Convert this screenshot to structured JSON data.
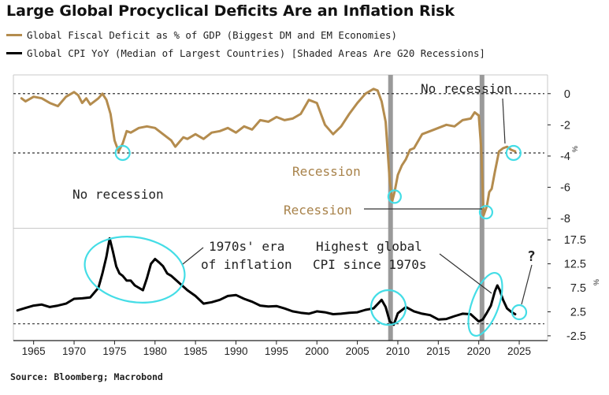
{
  "title": "Large Global Procyclical Deficits Are an Inflation Risk",
  "source": "Source: Bloomberg; Macrobond",
  "colors": {
    "deficit": "#b48c4e",
    "cpi": "#000000",
    "recession": "#9a9a9a",
    "highlight": "#44dde6",
    "annotation_brown": "#a8824a"
  },
  "chart_data": {
    "type": "line",
    "legend": [
      {
        "label": "Global Fiscal Deficit as % of GDP (Biggest DM and EM Economies)",
        "color": "#b48c4e"
      },
      {
        "label": "Global CPI YoY (Median of Largest Countries) [Shaded Areas Are G20 Recessions]",
        "color": "#000000"
      }
    ],
    "x_ticks": [
      "1965",
      "1970",
      "1975",
      "1980",
      "1985",
      "1990",
      "1995",
      "2000",
      "2005",
      "2010",
      "2015",
      "2020",
      "2025"
    ],
    "xlim": [
      1962.5,
      2028.5
    ],
    "recessions": [
      2009.1,
      2020.4
    ],
    "panels": [
      {
        "name": "Global Fiscal Deficit as % of GDP (Biggest DM and EM Economies)",
        "ylim": [
          -8.5,
          1.2
        ],
        "y_ticks": [
          0,
          -2,
          -4,
          -6,
          -8
        ],
        "y_tick_labels": [
          "0",
          "-2",
          "-4",
          "-6",
          "-8"
        ],
        "y_unit": "%",
        "reference_lines": [
          0,
          -3.8
        ],
        "series": [
          {
            "name": "Global Fiscal Deficit as % of GDP (Biggest DM and EM Economies)",
            "color": "#b48c4e",
            "x": [
              1963.5,
              1964,
              1965,
              1966,
              1967,
              1968,
              1969,
              1970,
              1970.5,
              1971,
              1971.5,
              1972,
              1973,
              1973.5,
              1974,
              1974.5,
              1975,
              1975.5,
              1976,
              1976.5,
              1977,
              1978,
              1979,
              1980,
              1981,
              1982,
              1982.5,
              1983,
              1983.5,
              1984,
              1985,
              1986,
              1987,
              1988,
              1989,
              1990,
              1991,
              1992,
              1993,
              1994,
              1995,
              1996,
              1997,
              1998,
              1999,
              2000,
              2001,
              2002,
              2003,
              2004,
              2005,
              2006,
              2007,
              2007.5,
              2008,
              2008.5,
              2009,
              2009.3,
              2009.6,
              2010,
              2010.5,
              2011,
              2011.5,
              2012,
              2013,
              2014,
              2015,
              2016,
              2017,
              2018,
              2019,
              2019.5,
              2020,
              2020.3,
              2020.6,
              2021,
              2021.3,
              2021.6,
              2022,
              2022.5,
              2023,
              2023.5,
              2024,
              2024.5
            ],
            "y": [
              -0.3,
              -0.5,
              -0.2,
              -0.3,
              -0.6,
              -0.8,
              -0.2,
              0.1,
              -0.1,
              -0.6,
              -0.3,
              -0.7,
              -0.3,
              0.0,
              -0.4,
              -1.3,
              -3.0,
              -3.7,
              -3.2,
              -2.4,
              -2.5,
              -2.2,
              -2.1,
              -2.2,
              -2.6,
              -3.0,
              -3.4,
              -3.1,
              -2.8,
              -2.9,
              -2.6,
              -2.9,
              -2.5,
              -2.4,
              -2.2,
              -2.5,
              -2.1,
              -2.3,
              -1.7,
              -1.8,
              -1.5,
              -1.7,
              -1.6,
              -1.3,
              -0.4,
              -0.6,
              -2.0,
              -2.6,
              -2.1,
              -1.3,
              -0.6,
              0.0,
              0.3,
              0.2,
              -0.5,
              -1.8,
              -5.6,
              -6.9,
              -6.3,
              -5.2,
              -4.6,
              -4.2,
              -3.6,
              -3.5,
              -2.6,
              -2.4,
              -2.2,
              -2.0,
              -2.1,
              -1.7,
              -1.6,
              -1.2,
              -1.4,
              -3.5,
              -7.8,
              -7.2,
              -6.3,
              -6.1,
              -5.0,
              -3.7,
              -3.5,
              -3.4,
              -3.6,
              -3.7
            ]
          }
        ],
        "annotations": [
          {
            "text": "No recession",
            "x": 1976,
            "y": -3.8
          },
          {
            "text": "Recession",
            "x": 2009.6,
            "y": -6.6
          },
          {
            "text": "Recession",
            "x": 2020.9,
            "y": -7.6
          },
          {
            "text": "No recession",
            "x": 2024.3,
            "y": -3.8
          }
        ]
      },
      {
        "name": "Global CPI YoY (Median of Largest Countries)",
        "ylim": [
          -3.5,
          19.5
        ],
        "y_ticks": [
          17.5,
          12.5,
          7.5,
          2.5,
          -2.5
        ],
        "y_tick_labels": [
          "17.5",
          "12.5",
          "7.5",
          "2.5",
          "-2.5"
        ],
        "y_unit": "%",
        "reference_lines": [
          0
        ],
        "series": [
          {
            "name": "Global CPI YoY (Median of Largest Countries) [Shaded Areas Are G20 Recessions]",
            "color": "#000000",
            "x": [
              1963,
              1964,
              1965,
              1966,
              1967,
              1968,
              1969,
              1970,
              1971,
              1972,
              1973,
              1973.5,
              1974,
              1974.4,
              1974.8,
              1975.2,
              1975.6,
              1976,
              1976.5,
              1977,
              1977.5,
              1978,
              1978.5,
              1979,
              1979.5,
              1980,
              1980.5,
              1981,
              1981.5,
              1982,
              1983,
              1984,
              1985,
              1986,
              1987,
              1988,
              1989,
              1990,
              1991,
              1992,
              1993,
              1994,
              1995,
              1996,
              1997,
              1998,
              1999,
              2000,
              2001,
              2002,
              2003,
              2004,
              2005,
              2006,
              2007,
              2008,
              2008.5,
              2009,
              2009.5,
              2010,
              2011,
              2012,
              2013,
              2014,
              2015,
              2016,
              2017,
              2018,
              2019,
              2020,
              2020.5,
              2021,
              2021.5,
              2022,
              2022.3,
              2022.6,
              2023,
              2023.5,
              2024,
              2024.5
            ],
            "y": [
              2.8,
              3.3,
              3.8,
              4.0,
              3.5,
              3.8,
              4.2,
              5.2,
              5.3,
              5.5,
              7.5,
              10.5,
              14.0,
              17.8,
              15.0,
              12.0,
              10.5,
              10.0,
              9.0,
              9.0,
              8.0,
              7.5,
              7.0,
              9.5,
              12.5,
              13.5,
              12.8,
              12.0,
              10.5,
              10.0,
              8.5,
              7.0,
              5.8,
              4.2,
              4.5,
              5.0,
              5.8,
              6.0,
              5.2,
              4.6,
              3.8,
              3.6,
              3.7,
              3.2,
              2.6,
              2.3,
              2.1,
              2.6,
              2.4,
              2.0,
              2.1,
              2.3,
              2.4,
              2.9,
              3.2,
              5.0,
              3.5,
              0.5,
              -0.2,
              2.2,
              3.5,
              2.6,
              2.1,
              1.8,
              0.9,
              1.0,
              1.6,
              2.1,
              2.0,
              0.5,
              0.9,
              2.3,
              3.8,
              6.8,
              8.0,
              7.0,
              5.0,
              3.2,
              2.5,
              2.0
            ]
          }
        ],
        "annotations": [
          {
            "text": "1970s' era",
            "x": 1987,
            "y": 14.5
          },
          {
            "text": "of inflation",
            "x": 1987,
            "y": 11.5
          },
          {
            "text": "Highest global",
            "x": 2007,
            "y": 16.5
          },
          {
            "text": "CPI since 1970s",
            "x": 2007,
            "y": 13.0
          },
          {
            "text": "?",
            "x": 2026,
            "y": 14.5
          }
        ]
      }
    ]
  }
}
